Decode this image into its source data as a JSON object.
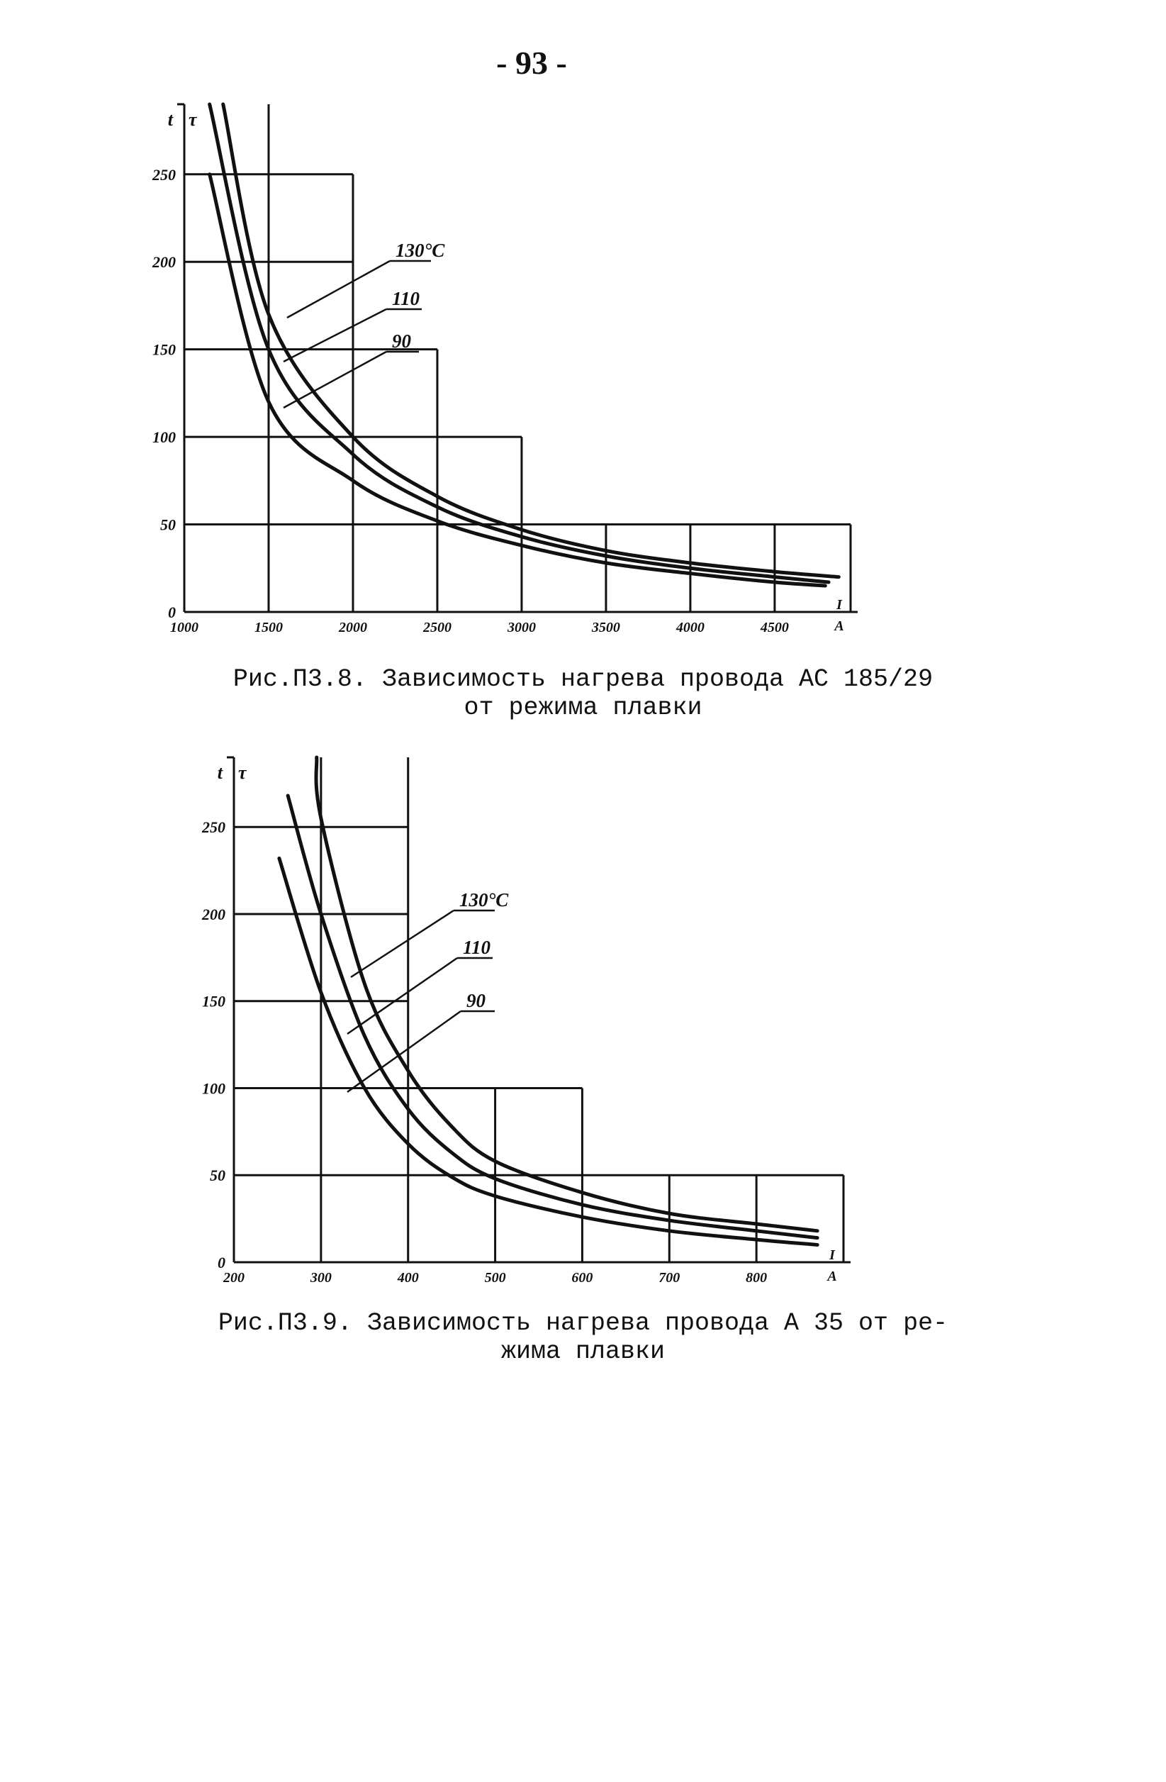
{
  "page_number": "- 93 -",
  "chart_data": [
    {
      "type": "line",
      "caption_line1": "Рис.П3.8. Зависимость нагрева провода АС 185/29",
      "caption_line2": "от режима плавки",
      "y_axis_labels": [
        "t",
        "τ"
      ],
      "x_unit": "I A",
      "xlim": [
        1000,
        4950
      ],
      "ylim": [
        0,
        290
      ],
      "x_ticks": [
        1000,
        1500,
        2000,
        2500,
        3000,
        3500,
        4000,
        4500
      ],
      "x_tick_labels": [
        "1000",
        "1500",
        "2000",
        "2500",
        "3000",
        "3500",
        "4000",
        "4500"
      ],
      "y_ticks": [
        0,
        50,
        100,
        150,
        200,
        250
      ],
      "y_tick_labels": [
        "0",
        "50",
        "100",
        "150",
        "200",
        "250"
      ],
      "series": [
        {
          "name": "130°C",
          "x": [
            1230,
            1500,
            2000,
            2500,
            3000,
            3500,
            4000,
            4500,
            4880
          ],
          "y": [
            290,
            170,
            100,
            66,
            47,
            35,
            28,
            23,
            20
          ]
        },
        {
          "name": "110",
          "x": [
            1150,
            1500,
            2000,
            2500,
            3000,
            3500,
            4000,
            4500,
            4820
          ],
          "y": [
            290,
            150,
            90,
            60,
            43,
            32,
            25,
            20,
            17
          ]
        },
        {
          "name": "90",
          "x": [
            1150,
            1500,
            2000,
            2500,
            3000,
            3500,
            4000,
            4500,
            4800
          ],
          "y": [
            250,
            120,
            75,
            52,
            38,
            28,
            22,
            17,
            15
          ]
        }
      ]
    },
    {
      "type": "line",
      "caption_line1": "Рис.П3.9. Зависимость нагрева провода А 35 от ре-",
      "caption_line2": "жима плавки",
      "y_axis_labels": [
        "t",
        "τ"
      ],
      "x_unit": "I A",
      "xlim": [
        200,
        900
      ],
      "ylim": [
        0,
        290
      ],
      "x_ticks": [
        200,
        300,
        400,
        500,
        600,
        700,
        800
      ],
      "x_tick_labels": [
        "200",
        "300",
        "400",
        "500",
        "600",
        "700",
        "800"
      ],
      "y_ticks": [
        0,
        50,
        100,
        150,
        200,
        250
      ],
      "y_tick_labels": [
        "0",
        "50",
        "100",
        "150",
        "200",
        "250"
      ],
      "series": [
        {
          "name": "130°C",
          "x": [
            295,
            300,
            350,
            400,
            450,
            500,
            600,
            700,
            800,
            870
          ],
          "y": [
            290,
            255,
            160,
            110,
            78,
            58,
            40,
            28,
            22,
            18
          ]
        },
        {
          "name": "110",
          "x": [
            262,
            300,
            350,
            400,
            450,
            500,
            600,
            700,
            800,
            870
          ],
          "y": [
            268,
            200,
            130,
            88,
            63,
            48,
            33,
            24,
            18,
            14
          ]
        },
        {
          "name": "90",
          "x": [
            252,
            300,
            350,
            400,
            450,
            500,
            600,
            700,
            800,
            870
          ],
          "y": [
            232,
            155,
            100,
            68,
            49,
            38,
            26,
            18,
            13,
            10
          ]
        }
      ]
    }
  ]
}
